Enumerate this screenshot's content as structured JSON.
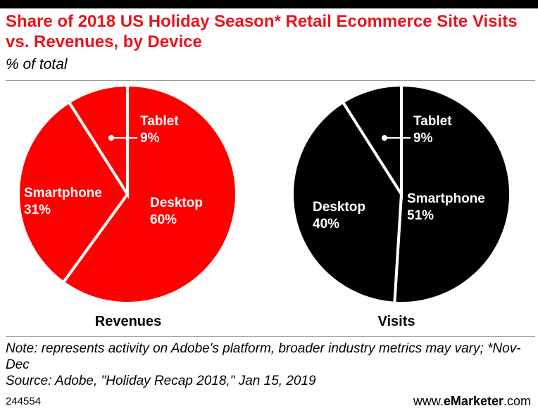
{
  "header": {
    "title": "Share of 2018 US Holiday Season* Retail Ecommerce Site Visits vs. Revenues, by Device",
    "subtitle": "% of total"
  },
  "chart_data": [
    {
      "type": "pie",
      "label": "Revenues",
      "colors": {
        "fill": "#ff0000",
        "stroke": "#ffffff",
        "label": "#ffffff"
      },
      "slices": [
        {
          "name": "Desktop",
          "value": 60,
          "display": "60%"
        },
        {
          "name": "Smartphone",
          "value": 31,
          "display": "31%"
        },
        {
          "name": "Tablet",
          "value": 9,
          "display": "9%"
        }
      ]
    },
    {
      "type": "pie",
      "label": "Visits",
      "colors": {
        "fill": "#000000",
        "stroke": "#ffffff",
        "label": "#ffffff"
      },
      "slices": [
        {
          "name": "Smartphone",
          "value": 51,
          "display": "51%"
        },
        {
          "name": "Desktop",
          "value": 40,
          "display": "40%"
        },
        {
          "name": "Tablet",
          "value": 9,
          "display": "9%"
        }
      ]
    }
  ],
  "notes": {
    "note": "Note: represents activity on Adobe's platform, broader industry metrics may vary; *Nov-Dec",
    "source": "Source: Adobe, \"Holiday Recap 2018,\" Jan 15, 2019"
  },
  "footer": {
    "chart_id": "244554",
    "brand_prefix": "www.",
    "brand_name": "eMarketer",
    "brand_suffix": ".com"
  }
}
